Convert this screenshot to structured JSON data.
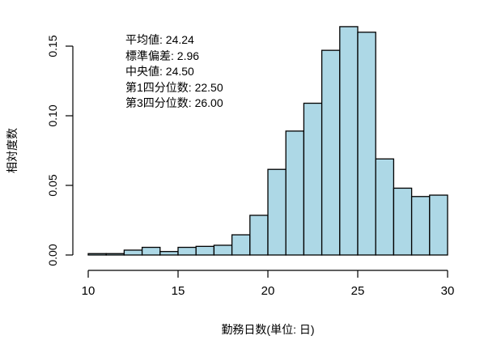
{
  "chart_data": {
    "type": "bar",
    "subtype": "histogram",
    "title": "",
    "xlabel": "勤務日数(単位: 日)",
    "ylabel": "相対度数",
    "xlim": [
      10,
      30
    ],
    "ylim": [
      0,
      0.15
    ],
    "x_ticks": [
      10,
      15,
      20,
      25,
      30
    ],
    "y_ticks": [
      "0.00",
      "0.05",
      "0.10",
      "0.15"
    ],
    "bin_width": 1,
    "bins": [
      [
        10,
        11
      ],
      [
        11,
        12
      ],
      [
        12,
        13
      ],
      [
        13,
        14
      ],
      [
        14,
        15
      ],
      [
        15,
        16
      ],
      [
        16,
        17
      ],
      [
        17,
        18
      ],
      [
        18,
        19
      ],
      [
        19,
        20
      ],
      [
        20,
        21
      ],
      [
        21,
        22
      ],
      [
        22,
        23
      ],
      [
        23,
        24
      ],
      [
        24,
        25
      ],
      [
        25,
        26
      ],
      [
        26,
        27
      ],
      [
        27,
        28
      ],
      [
        28,
        29
      ],
      [
        29,
        30
      ]
    ],
    "categories": [
      "10-11",
      "11-12",
      "12-13",
      "13-14",
      "14-15",
      "15-16",
      "16-17",
      "17-18",
      "18-19",
      "19-20",
      "20-21",
      "21-22",
      "22-23",
      "23-24",
      "24-25",
      "25-26",
      "26-27",
      "27-28",
      "28-29",
      "29-30"
    ],
    "values": [
      0.001,
      0.001,
      0.0035,
      0.0055,
      0.0025,
      0.0055,
      0.0062,
      0.007,
      0.0145,
      0.0285,
      0.0615,
      0.089,
      0.109,
      0.147,
      0.164,
      0.16,
      0.069,
      0.048,
      0.042,
      0.043
    ],
    "bar_color": "#ADD8E6",
    "edge_color": "#000000",
    "grid": false,
    "legend": null,
    "annotations": [
      "平均値: 24.24",
      "標準偏差: 2.96",
      "中央値: 24.50",
      "第1四分位数: 22.50",
      "第3四分位数: 26.00"
    ]
  },
  "stats": {
    "mean": "平均値: 24.24",
    "sd": "標準偏差: 2.96",
    "median": "中央値: 24.50",
    "q1": "第1四分位数: 22.50",
    "q3": "第3四分位数: 26.00"
  }
}
